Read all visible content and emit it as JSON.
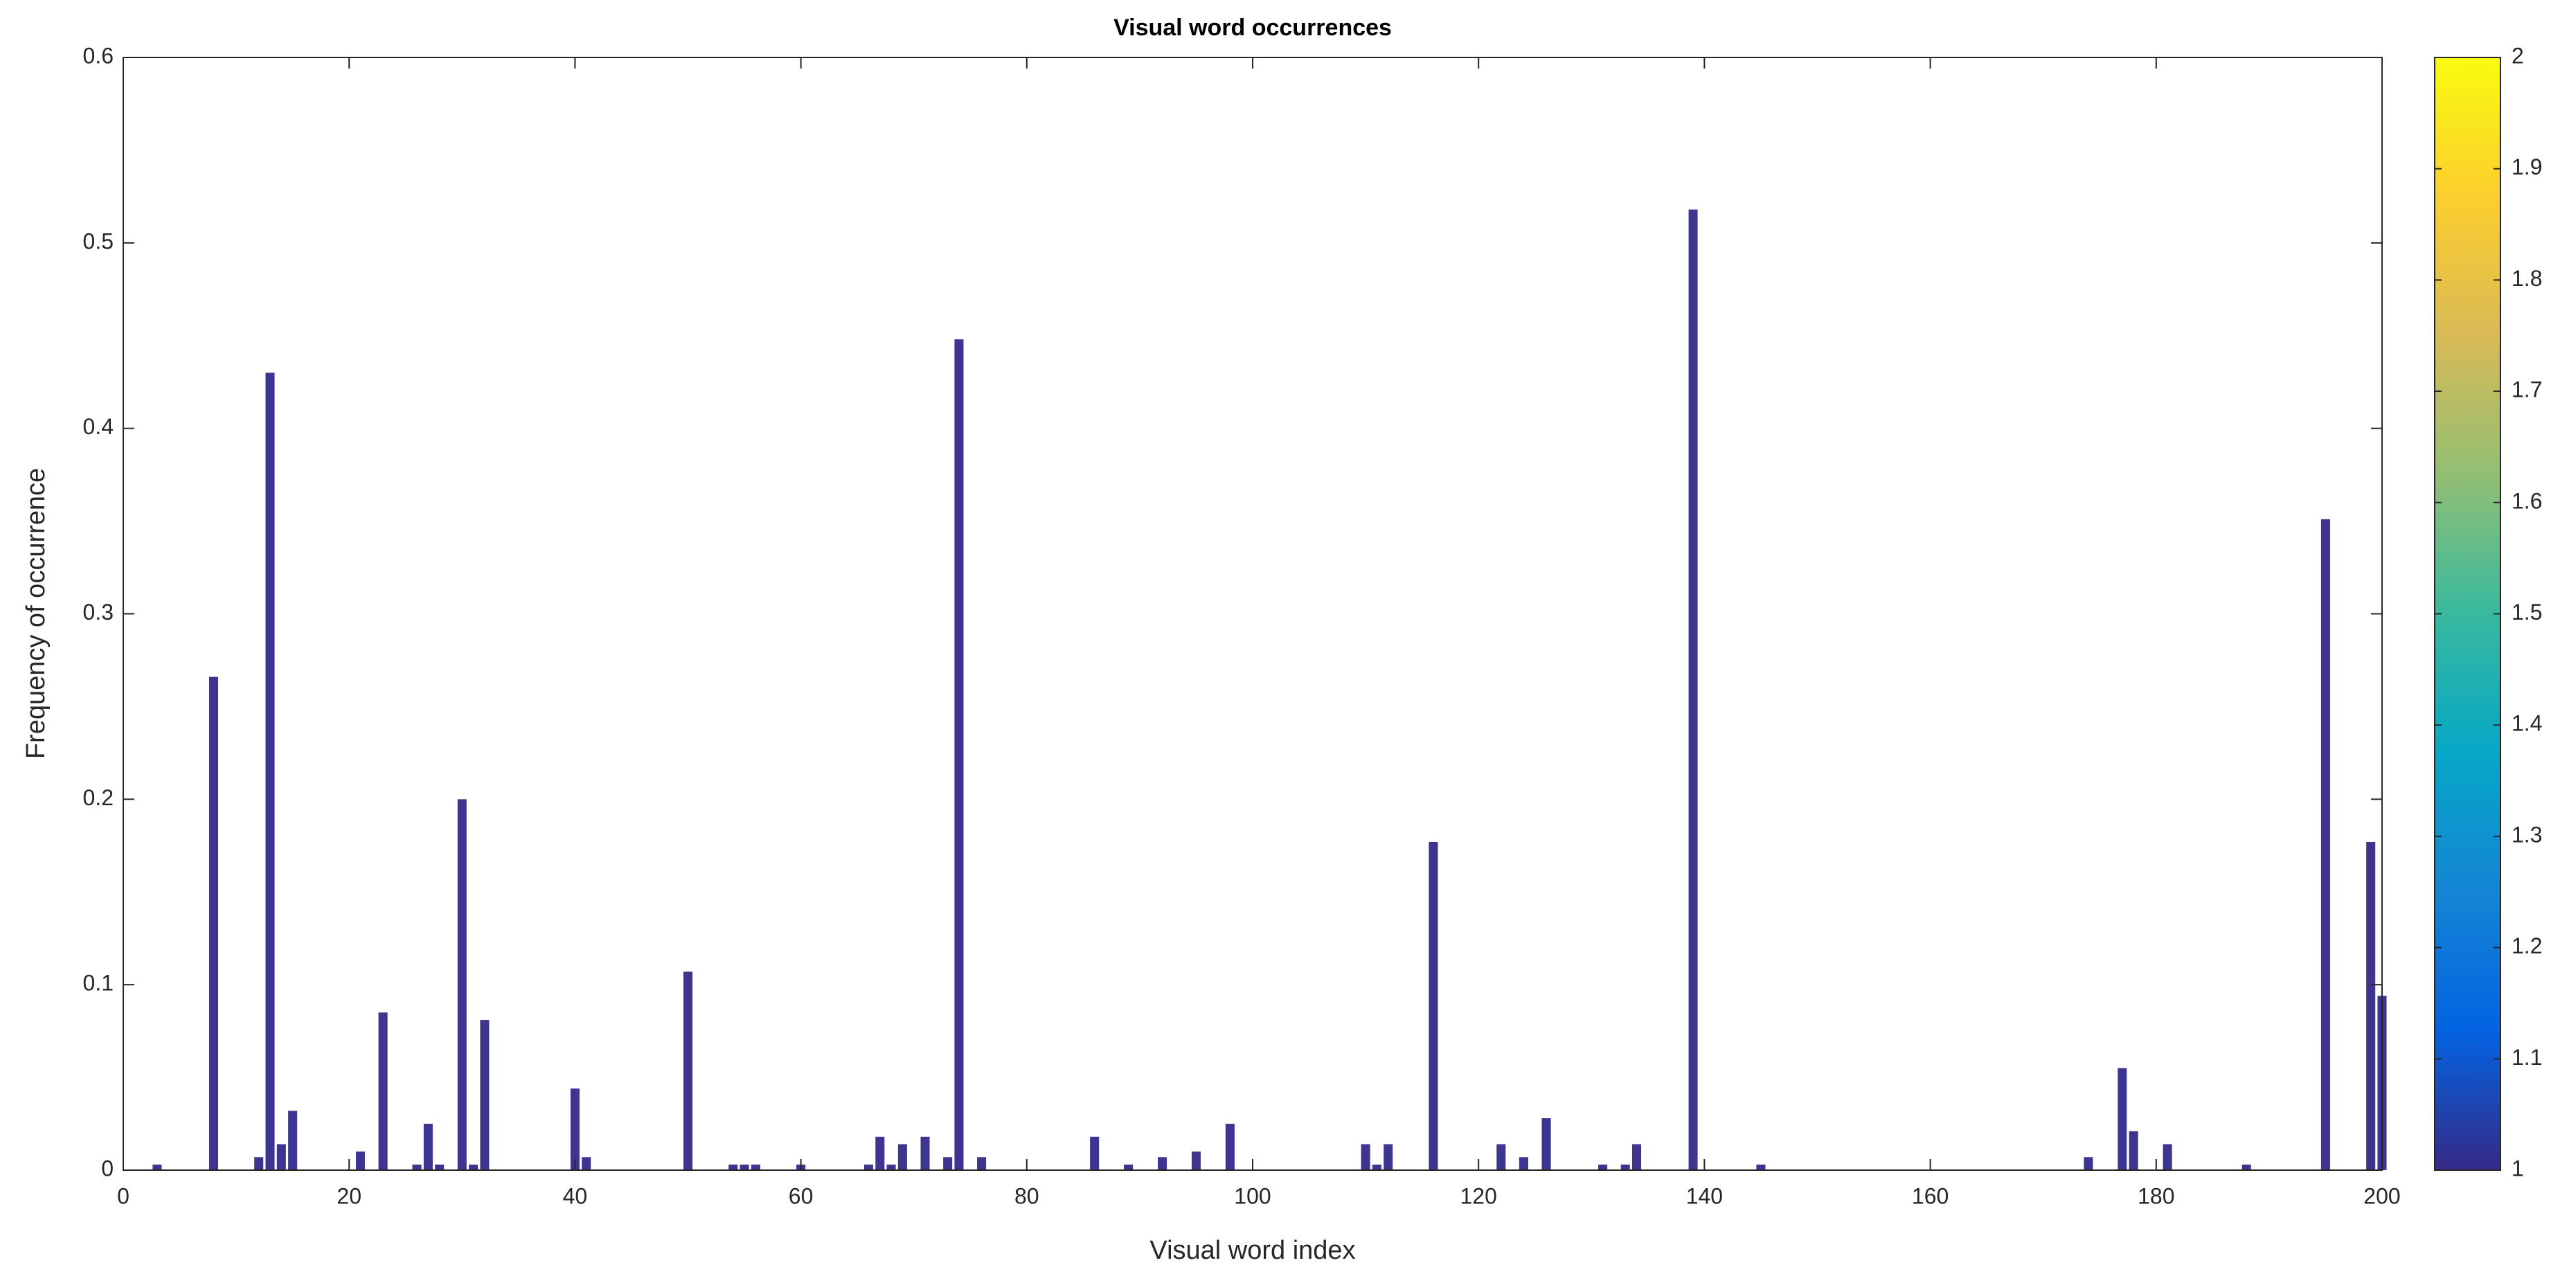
{
  "chart_data": {
    "type": "bar",
    "title": "Visual word occurrences",
    "x_label": "Visual word index",
    "y_label": "Frequency of occurrence",
    "x": [
      3,
      8,
      12,
      13,
      14,
      15,
      21,
      23,
      26,
      27,
      28,
      30,
      31,
      32,
      40,
      41,
      50,
      54,
      55,
      56,
      60,
      66,
      67,
      68,
      69,
      71,
      73,
      74,
      76,
      86,
      89,
      92,
      95,
      98,
      110,
      111,
      112,
      116,
      122,
      124,
      126,
      131,
      133,
      134,
      139,
      145,
      174,
      177,
      178,
      181,
      188,
      195,
      199,
      200
    ],
    "values": [
      0.003,
      0.266,
      0.007,
      0.43,
      0.014,
      0.032,
      0.01,
      0.085,
      0.003,
      0.025,
      0.003,
      0.2,
      0.003,
      0.081,
      0.044,
      0.007,
      0.107,
      0.003,
      0.003,
      0.003,
      0.003,
      0.003,
      0.018,
      0.003,
      0.014,
      0.018,
      0.007,
      0.448,
      0.007,
      0.018,
      0.003,
      0.007,
      0.01,
      0.025,
      0.014,
      0.003,
      0.014,
      0.177,
      0.014,
      0.007,
      0.028,
      0.003,
      0.003,
      0.014,
      0.518,
      0.003,
      0.007,
      0.055,
      0.021,
      0.014,
      0.003,
      0.351,
      0.177,
      0.094
    ],
    "color": "#3d3590",
    "bar_width": 0.8,
    "xlim": [
      0,
      200
    ],
    "xticks": [
      0,
      20,
      40,
      60,
      80,
      100,
      120,
      140,
      160,
      180,
      200
    ],
    "ylim": [
      0,
      0.6
    ],
    "yticks": [
      0,
      0.1,
      0.2,
      0.3,
      0.4,
      0.5,
      0.6
    ],
    "grid": false,
    "colorbar": {
      "lim": [
        1,
        2
      ],
      "ticks": [
        1,
        1.1,
        1.2,
        1.3,
        1.4,
        1.5,
        1.6,
        1.7,
        1.8,
        1.9,
        2
      ],
      "colors": [
        "#352a87",
        "#0363e1",
        "#1485d4",
        "#06a7c6",
        "#38b99e",
        "#92bf73",
        "#d9ba56",
        "#fcce2e",
        "#f9fb0e"
      ]
    }
  }
}
